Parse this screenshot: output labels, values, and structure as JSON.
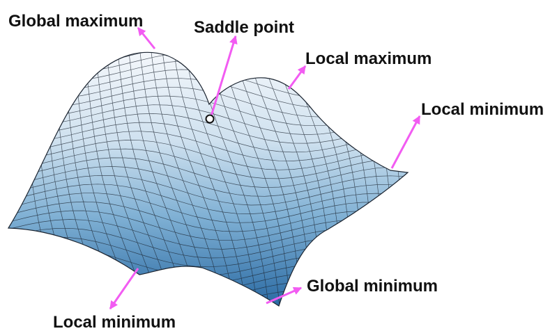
{
  "labels": {
    "global_maximum": "Global maximum",
    "saddle_point": "Saddle point",
    "local_maximum": "Local maximum",
    "local_minimum_right": "Local minimum",
    "global_minimum": "Global minimum",
    "local_minimum_bottom": "Local minimum"
  },
  "colors": {
    "arrow": "#f25cf2",
    "mesh_line": "#1b2430",
    "surface_high": "#f2f6fb",
    "surface_low": "#245f96",
    "saddle_marker": "#ffffff"
  }
}
